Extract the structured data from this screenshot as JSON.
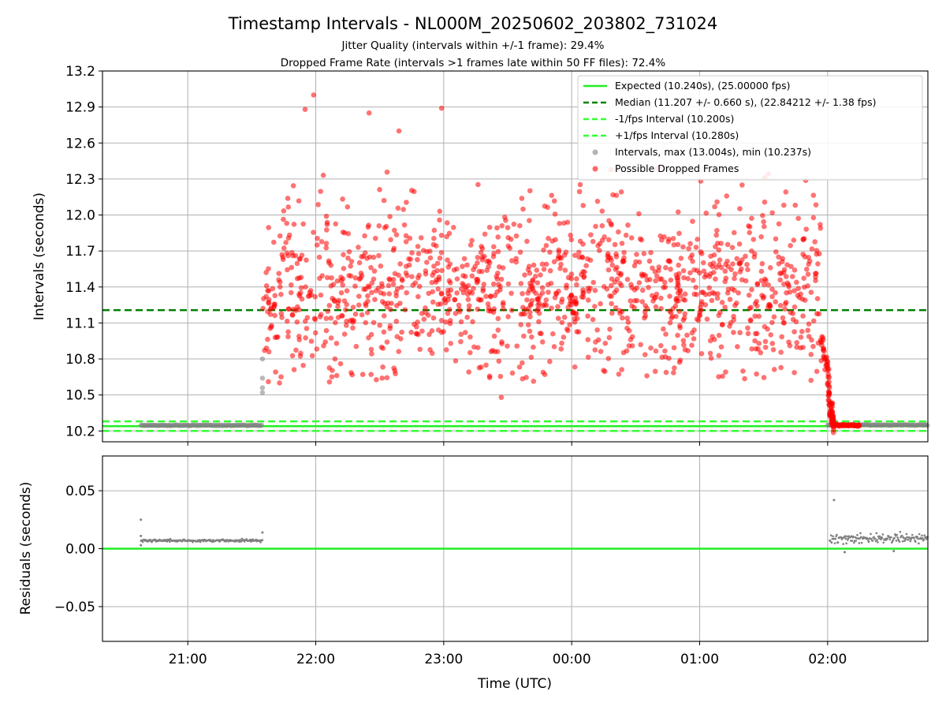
{
  "title": "Timestamp Intervals - NL000M_20250602_203802_731024",
  "subtitle_lines": [
    "Jitter Quality (intervals within +/-1 frame): 29.4%",
    "Dropped Frame Rate (intervals >1 frames late within 50 FF files): 72.4%"
  ],
  "colors": {
    "expected": "#22ee22",
    "median": "#008000",
    "fps_band": "#33ff33",
    "intervals": "#808080",
    "dropped": "#ff0000",
    "grid": "#b0b0b0"
  },
  "chart_data": [
    {
      "type": "scatter",
      "ylabel": "Intervals (seconds)",
      "xlim": [
        "20:20",
        "02:47"
      ],
      "ylim": [
        10.11,
        13.2
      ],
      "yticks": [
        "10.2",
        "10.5",
        "10.8",
        "11.1",
        "11.4",
        "11.7",
        "12.0",
        "12.3",
        "12.6",
        "12.9",
        "13.2"
      ],
      "grid": true,
      "legend_position": "top-right",
      "reference_lines": [
        {
          "name": "Expected (10.240s), (25.00000 fps)",
          "y": 10.24,
          "style": "solid"
        },
        {
          "name": "Median (11.207 +/- 0.660 s), (22.84212 +/- 1.38 fps)",
          "y": 11.207,
          "style": "dashed"
        },
        {
          "name": "-1/fps Interval (10.200s)",
          "y": 10.2,
          "style": "dashed"
        },
        {
          "name": "+1/fps Interval (10.280s)",
          "y": 10.28,
          "style": "dashed"
        }
      ],
      "series": [
        {
          "name": "Intervals, max (13.004s), min (10.237s)",
          "segments": [
            {
              "x_start": "20:38",
              "x_end": "21:35",
              "y": 10.247
            },
            {
              "x_start": "02:00",
              "x_end": "02:47",
              "y": 10.25
            }
          ],
          "transition_points": [
            {
              "x": "21:35",
              "y": 10.8
            },
            {
              "x": "21:35",
              "y": 10.64
            },
            {
              "x": "21:35",
              "y": 10.56
            },
            {
              "x": "21:35",
              "y": 10.52
            }
          ]
        },
        {
          "name": "Possible Dropped Frames",
          "x_range": [
            "21:35",
            "02:15"
          ],
          "y_range": [
            10.24,
            13.0
          ],
          "median_y": 11.207,
          "notable_points": [
            {
              "x": "21:59",
              "y": 13.0
            },
            {
              "x": "21:55",
              "y": 12.88
            },
            {
              "x": "22:59",
              "y": 12.89
            },
            {
              "x": "22:25",
              "y": 12.85
            },
            {
              "x": "22:39",
              "y": 12.7
            },
            {
              "x": "23:27",
              "y": 10.48
            },
            {
              "x": "21:43",
              "y": 10.6
            }
          ],
          "tail": [
            {
              "x": "01:57",
              "y": 10.98
            },
            {
              "x": "02:00",
              "y": 10.7
            },
            {
              "x": "02:01",
              "y": 10.45
            },
            {
              "x": "02:02",
              "y": 10.3
            },
            {
              "x": "02:03",
              "y": 10.25
            },
            {
              "x": "02:15",
              "y": 10.245
            }
          ]
        }
      ]
    },
    {
      "type": "scatter",
      "xlabel": "Time (UTC)",
      "ylabel": "Residuals (seconds)",
      "xlim": [
        "20:20",
        "02:47"
      ],
      "ylim": [
        -0.08,
        0.08
      ],
      "yticks": [
        "−0.05",
        "0.00",
        "0.05"
      ],
      "xticks": [
        "21:00",
        "22:00",
        "23:00",
        "00:00",
        "01:00",
        "02:00"
      ],
      "grid": true,
      "reference_lines": [
        {
          "y": 0.0,
          "style": "solid"
        }
      ],
      "series": [
        {
          "segments": [
            {
              "x_start": "20:38",
              "x_end": "21:35",
              "y": 0.007,
              "spread": 0.001
            },
            {
              "x_start": "02:01",
              "x_end": "02:47",
              "y": 0.009,
              "spread": 0.004
            }
          ],
          "outliers": [
            {
              "x": "20:38",
              "y": 0.025
            },
            {
              "x": "20:38",
              "y": 0.011
            },
            {
              "x": "20:38",
              "y": 0.003
            },
            {
              "x": "21:35",
              "y": 0.014
            },
            {
              "x": "02:03",
              "y": 0.042
            },
            {
              "x": "02:08",
              "y": -0.003
            },
            {
              "x": "02:31",
              "y": -0.002
            }
          ]
        }
      ]
    }
  ]
}
